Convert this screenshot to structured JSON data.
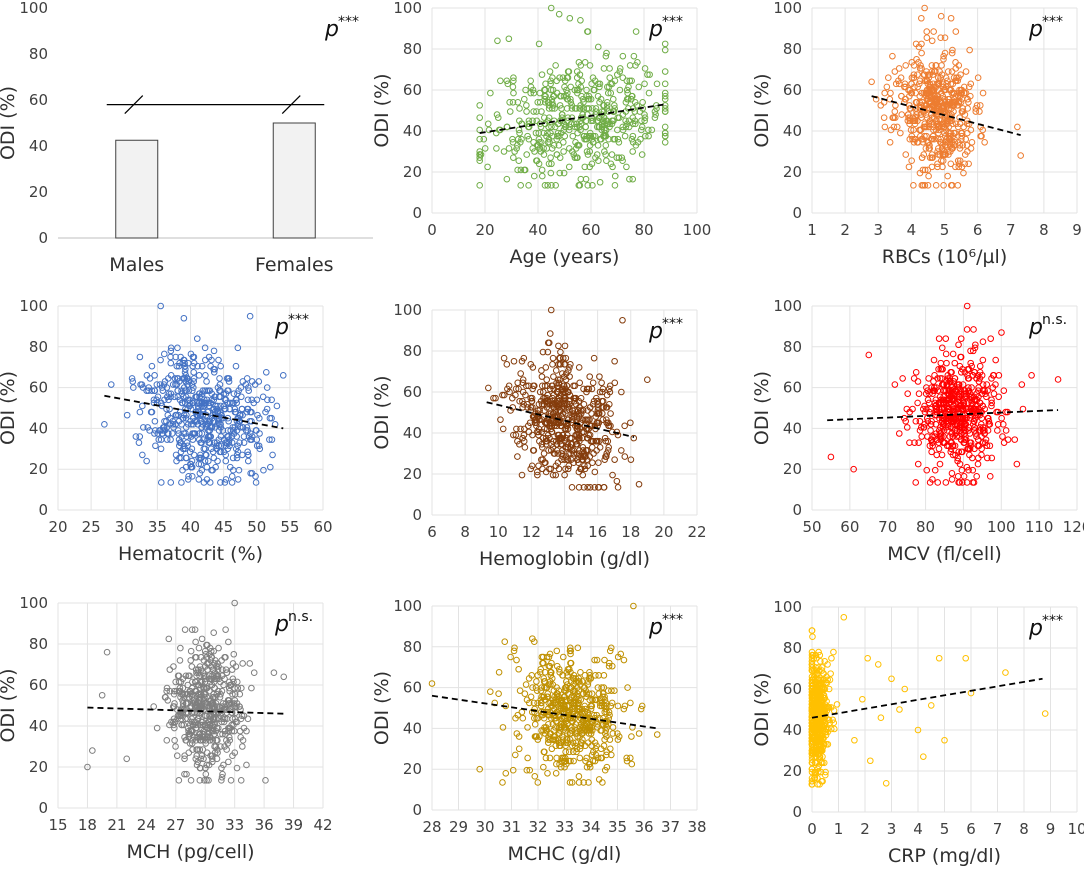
{
  "figure": {
    "y_axis_label": "ODI (%)",
    "y_ticks": [
      "0",
      "20",
      "40",
      "60",
      "80",
      "100"
    ]
  },
  "chart_data": [
    {
      "type": "bar",
      "categories": [
        "Males",
        "Females"
      ],
      "values": [
        42.5,
        50.0
      ],
      "ylim": [
        0,
        100
      ],
      "yticks": [
        0,
        20,
        40,
        60,
        80,
        100
      ],
      "xlabel": "",
      "ylabel": "ODI (%)",
      "significance": {
        "p": "p",
        "sup": "***"
      },
      "bar_color": "#f2f2f2",
      "comparison_line_value": 58
    },
    {
      "type": "scatter",
      "xlabel": "Age (years)",
      "ylabel": "ODI (%)",
      "xlim": [
        0,
        100
      ],
      "xticks": [
        "0",
        "20",
        "40",
        "60",
        "80",
        "100"
      ],
      "ylim": [
        0,
        100
      ],
      "yticks": [
        0,
        20,
        40,
        60,
        80,
        100
      ],
      "color": "#70ad47",
      "significance": {
        "p": "p",
        "sup": "***"
      },
      "trend": {
        "x": [
          18,
          88
        ],
        "y": [
          39,
          53
        ]
      },
      "cluster": {
        "x_center": 55,
        "x_spread": 17,
        "x_min": 18,
        "x_max": 88,
        "n": 520,
        "seed": 11
      },
      "outliers": [
        [
          45,
          100
        ],
        [
          48,
          97
        ],
        [
          52,
          95
        ],
        [
          56,
          94
        ],
        [
          29,
          85
        ]
      ]
    },
    {
      "type": "scatter",
      "xlabel": "RBCs (10⁶/µl)",
      "ylabel": "ODI (%)",
      "xlim": [
        1,
        9
      ],
      "xticks": [
        "1",
        "2",
        "3",
        "4",
        "5",
        "6",
        "7",
        "8",
        "9"
      ],
      "ylim": [
        0,
        100
      ],
      "yticks": [
        0,
        20,
        40,
        60,
        80,
        100
      ],
      "color": "#ed7d31",
      "significance": {
        "p": "p",
        "sup": "***"
      },
      "trend": {
        "x": [
          2.8,
          7.3
        ],
        "y": [
          57,
          38
        ]
      },
      "cluster": {
        "x_center": 4.7,
        "x_spread": 0.6,
        "x_min": 2.8,
        "x_max": 7.4,
        "n": 520,
        "seed": 23
      },
      "outliers": [
        [
          4.4,
          100
        ],
        [
          4.3,
          95
        ],
        [
          4.9,
          96
        ],
        [
          5.2,
          95
        ],
        [
          2.8,
          64
        ],
        [
          3.2,
          42
        ],
        [
          7.2,
          42
        ],
        [
          7.3,
          28
        ]
      ]
    },
    {
      "type": "scatter",
      "xlabel": "Hematocrit (%)",
      "ylabel": "ODI (%)",
      "xlim": [
        20,
        60
      ],
      "xticks": [
        "20",
        "25",
        "30",
        "35",
        "40",
        "45",
        "50",
        "55",
        "60"
      ],
      "ylim": [
        0,
        100
      ],
      "yticks": [
        0,
        20,
        40,
        60,
        80,
        100
      ],
      "color": "#4472c4",
      "significance": {
        "p": "p",
        "sup": "***"
      },
      "trend": {
        "x": [
          27,
          54
        ],
        "y": [
          56,
          40
        ]
      },
      "cluster": {
        "x_center": 42,
        "x_spread": 4.5,
        "x_min": 27,
        "x_max": 54,
        "n": 560,
        "seed": 37
      },
      "outliers": [
        [
          35.5,
          100
        ],
        [
          27,
          42
        ],
        [
          54,
          66
        ],
        [
          39,
          94
        ],
        [
          49,
          95
        ]
      ]
    },
    {
      "type": "scatter",
      "xlabel": "Hemoglobin (g/dl)",
      "ylabel": "ODI (%)",
      "xlim": [
        6,
        22
      ],
      "xticks": [
        "6",
        "8",
        "10",
        "12",
        "14",
        "16",
        "18",
        "20",
        "22"
      ],
      "ylim": [
        0,
        100
      ],
      "yticks": [
        0,
        20,
        40,
        60,
        80,
        100
      ],
      "color": "#843c0c",
      "significance": {
        "p": "p",
        "sup": "***"
      },
      "trend": {
        "x": [
          9.3,
          18.2
        ],
        "y": [
          55,
          38
        ]
      },
      "cluster": {
        "x_center": 14,
        "x_spread": 1.6,
        "x_min": 9.3,
        "x_max": 18.5,
        "n": 560,
        "seed": 41
      },
      "outliers": [
        [
          13.2,
          100
        ],
        [
          17.5,
          95
        ],
        [
          19,
          66
        ],
        [
          9.4,
          62
        ]
      ]
    },
    {
      "type": "scatter",
      "xlabel": "MCV (fl/cell)",
      "ylabel": "ODI (%)",
      "xlim": [
        50,
        120
      ],
      "xticks": [
        "50",
        "60",
        "70",
        "80",
        "90",
        "100",
        "110",
        "120"
      ],
      "ylim": [
        0,
        100
      ],
      "yticks": [
        0,
        20,
        40,
        60,
        80,
        100
      ],
      "color": "#ff0000",
      "significance": {
        "p": "p",
        "sup": "n.s."
      },
      "trend": {
        "x": [
          54,
          115
        ],
        "y": [
          44,
          49
        ]
      },
      "cluster": {
        "x_center": 89,
        "x_spread": 6,
        "x_min": 54,
        "x_max": 115,
        "n": 540,
        "seed": 53
      },
      "outliers": [
        [
          91,
          100
        ],
        [
          55,
          26
        ],
        [
          115,
          64
        ],
        [
          61,
          20
        ],
        [
          65,
          76
        ],
        [
          108,
          66
        ]
      ]
    },
    {
      "type": "scatter",
      "xlabel": "MCH (pg/cell)",
      "ylabel": "ODI (%)",
      "xlim": [
        15,
        42
      ],
      "xticks": [
        "15",
        "18",
        "21",
        "24",
        "27",
        "30",
        "33",
        "36",
        "39",
        "42"
      ],
      "ylim": [
        0,
        100
      ],
      "yticks": [
        0,
        20,
        40,
        60,
        80,
        100
      ],
      "color": "#7f7f7f",
      "significance": {
        "p": "p",
        "sup": "n.s."
      },
      "trend": {
        "x": [
          18,
          38
        ],
        "y": [
          49,
          46
        ]
      },
      "cluster": {
        "x_center": 30,
        "x_spread": 1.8,
        "x_min": 18,
        "x_max": 38,
        "n": 520,
        "seed": 67
      },
      "outliers": [
        [
          33,
          100
        ],
        [
          18,
          20
        ],
        [
          18.5,
          28
        ],
        [
          20,
          76
        ],
        [
          37,
          66
        ],
        [
          38,
          64
        ],
        [
          22,
          24
        ],
        [
          19.5,
          55
        ]
      ]
    },
    {
      "type": "scatter",
      "xlabel": "MCHC (g/dl)",
      "ylabel": "ODI (%)",
      "xlim": [
        28,
        38
      ],
      "xticks": [
        "28",
        "29",
        "30",
        "31",
        "32",
        "33",
        "34",
        "35",
        "36",
        "37",
        "38"
      ],
      "ylim": [
        0,
        100
      ],
      "yticks": [
        0,
        20,
        40,
        60,
        80,
        100
      ],
      "color": "#bf9000",
      "significance": {
        "p": "p",
        "sup": "***"
      },
      "trend": {
        "x": [
          28,
          36.5
        ],
        "y": [
          56,
          40
        ]
      },
      "cluster": {
        "x_center": 33.2,
        "x_spread": 1.0,
        "x_min": 29.6,
        "x_max": 36.6,
        "n": 560,
        "seed": 71
      },
      "outliers": [
        [
          35.6,
          100
        ],
        [
          28,
          62
        ],
        [
          29.8,
          20
        ],
        [
          36.5,
          37
        ],
        [
          30.2,
          58
        ]
      ]
    },
    {
      "type": "scatter",
      "xlabel": "CRP (mg/dl)",
      "ylabel": "ODI (%)",
      "xlim": [
        0,
        10
      ],
      "xticks": [
        "0",
        "1",
        "2",
        "3",
        "4",
        "5",
        "6",
        "7",
        "8",
        "9",
        "10"
      ],
      "ylim": [
        0,
        100
      ],
      "yticks": [
        0,
        20,
        40,
        60,
        80,
        100
      ],
      "color": "#ffc000",
      "significance": {
        "p": "p",
        "sup": "***"
      },
      "trend": {
        "x": [
          0,
          8.7
        ],
        "y": [
          46,
          65
        ]
      },
      "cluster": {
        "x_center": 0.15,
        "x_spread": 0.25,
        "x_min": 0,
        "x_max": 1.2,
        "n": 560,
        "seed": 89
      },
      "outliers": [
        [
          1.2,
          95
        ],
        [
          2.1,
          75
        ],
        [
          2.5,
          72
        ],
        [
          3.5,
          60
        ],
        [
          4.8,
          75
        ],
        [
          5.8,
          75
        ],
        [
          7.3,
          68
        ],
        [
          8.8,
          48
        ],
        [
          2.8,
          14
        ],
        [
          3.3,
          50
        ],
        [
          4.0,
          40
        ],
        [
          4.5,
          52
        ],
        [
          5.0,
          35
        ],
        [
          3.0,
          65
        ],
        [
          1.6,
          35
        ],
        [
          2.2,
          25
        ],
        [
          6.0,
          58
        ],
        [
          2.6,
          46
        ],
        [
          1.9,
          55
        ],
        [
          4.2,
          27
        ]
      ]
    }
  ]
}
